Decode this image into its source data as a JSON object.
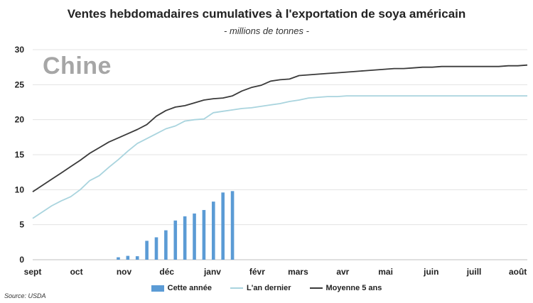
{
  "header": {
    "title": "Ventes hebdomadaires cumulatives à l'exportation de soya américain",
    "subtitle": "- millions de tonnes -"
  },
  "panel_label": "Chine",
  "source": "Source: USDA",
  "colors": {
    "bars": "#5b9bd5",
    "last_year": "#a9d4de",
    "five_year": "#3a3a3a",
    "grid": "#e3e3e3"
  },
  "chart_data": {
    "type": "bar+line",
    "title": "Ventes hebdomadaires cumulatives à l'exportation de soya américain",
    "subtitle": "- millions de tonnes -",
    "xlabel": "",
    "ylabel": "",
    "ylim": [
      0,
      30
    ],
    "yticks": [
      0,
      5,
      10,
      15,
      20,
      25,
      30
    ],
    "xlim": [
      0,
      52
    ],
    "month_ticks": [
      {
        "label": "sept",
        "week": 0
      },
      {
        "label": "oct",
        "week": 4.6
      },
      {
        "label": "nov",
        "week": 9.6
      },
      {
        "label": "déc",
        "week": 14.1
      },
      {
        "label": "janv",
        "week": 18.9
      },
      {
        "label": "févr",
        "week": 23.6
      },
      {
        "label": "mars",
        "week": 27.9
      },
      {
        "label": "avr",
        "week": 32.6
      },
      {
        "label": "mai",
        "week": 37.1
      },
      {
        "label": "juin",
        "week": 41.9
      },
      {
        "label": "juill",
        "week": 46.4
      },
      {
        "label": "août",
        "week": 51.0
      }
    ],
    "series": [
      {
        "name": "Cette année",
        "type": "bar",
        "x": [
          8,
          9,
          10,
          11,
          12,
          13,
          14,
          15,
          16,
          17,
          18,
          19,
          20,
          21
        ],
        "values": [
          0.0,
          0.35,
          0.55,
          0.5,
          2.7,
          3.2,
          4.2,
          5.6,
          6.2,
          6.6,
          7.1,
          8.3,
          9.6,
          9.8
        ]
      },
      {
        "name": "L'an dernier",
        "type": "line",
        "x": [
          0,
          1,
          2,
          3,
          4,
          5,
          6,
          7,
          8,
          9,
          10,
          11,
          12,
          13,
          14,
          15,
          16,
          17,
          18,
          19,
          20,
          21,
          22,
          23,
          24,
          25,
          26,
          27,
          28,
          29,
          30,
          31,
          32,
          33,
          34,
          35,
          36,
          37,
          38,
          39,
          40,
          41,
          42,
          43,
          44,
          45,
          46,
          47,
          48,
          49,
          50,
          51,
          52
        ],
        "values": [
          5.9,
          6.8,
          7.7,
          8.4,
          9.0,
          10.0,
          11.3,
          12.0,
          13.2,
          14.3,
          15.5,
          16.6,
          17.3,
          18.0,
          18.7,
          19.1,
          19.8,
          20.0,
          20.1,
          21.0,
          21.2,
          21.4,
          21.6,
          21.7,
          21.9,
          22.1,
          22.3,
          22.6,
          22.8,
          23.1,
          23.2,
          23.3,
          23.3,
          23.4,
          23.4,
          23.4,
          23.4,
          23.4,
          23.4,
          23.4,
          23.4,
          23.4,
          23.4,
          23.4,
          23.4,
          23.4,
          23.4,
          23.4,
          23.4,
          23.4,
          23.4,
          23.4,
          23.4
        ]
      },
      {
        "name": "Moyenne 5 ans",
        "type": "line",
        "x": [
          0,
          1,
          2,
          3,
          4,
          5,
          6,
          7,
          8,
          9,
          10,
          11,
          12,
          13,
          14,
          15,
          16,
          17,
          18,
          19,
          20,
          21,
          22,
          23,
          24,
          25,
          26,
          27,
          28,
          29,
          30,
          31,
          32,
          33,
          34,
          35,
          36,
          37,
          38,
          39,
          40,
          41,
          42,
          43,
          44,
          45,
          46,
          47,
          48,
          49,
          50,
          51,
          52
        ],
        "values": [
          9.7,
          10.6,
          11.5,
          12.4,
          13.3,
          14.2,
          15.2,
          16.0,
          16.8,
          17.4,
          18.0,
          18.6,
          19.3,
          20.5,
          21.3,
          21.8,
          22.0,
          22.4,
          22.8,
          23.0,
          23.1,
          23.4,
          24.1,
          24.6,
          24.9,
          25.5,
          25.7,
          25.8,
          26.3,
          26.4,
          26.5,
          26.6,
          26.7,
          26.8,
          26.9,
          27.0,
          27.1,
          27.2,
          27.3,
          27.3,
          27.4,
          27.5,
          27.5,
          27.6,
          27.6,
          27.6,
          27.6,
          27.6,
          27.6,
          27.6,
          27.7,
          27.7,
          27.8
        ]
      }
    ],
    "legend": [
      "Cette année",
      "L'an dernier",
      "Moyenne 5 ans"
    ],
    "legend_position": "bottom"
  }
}
